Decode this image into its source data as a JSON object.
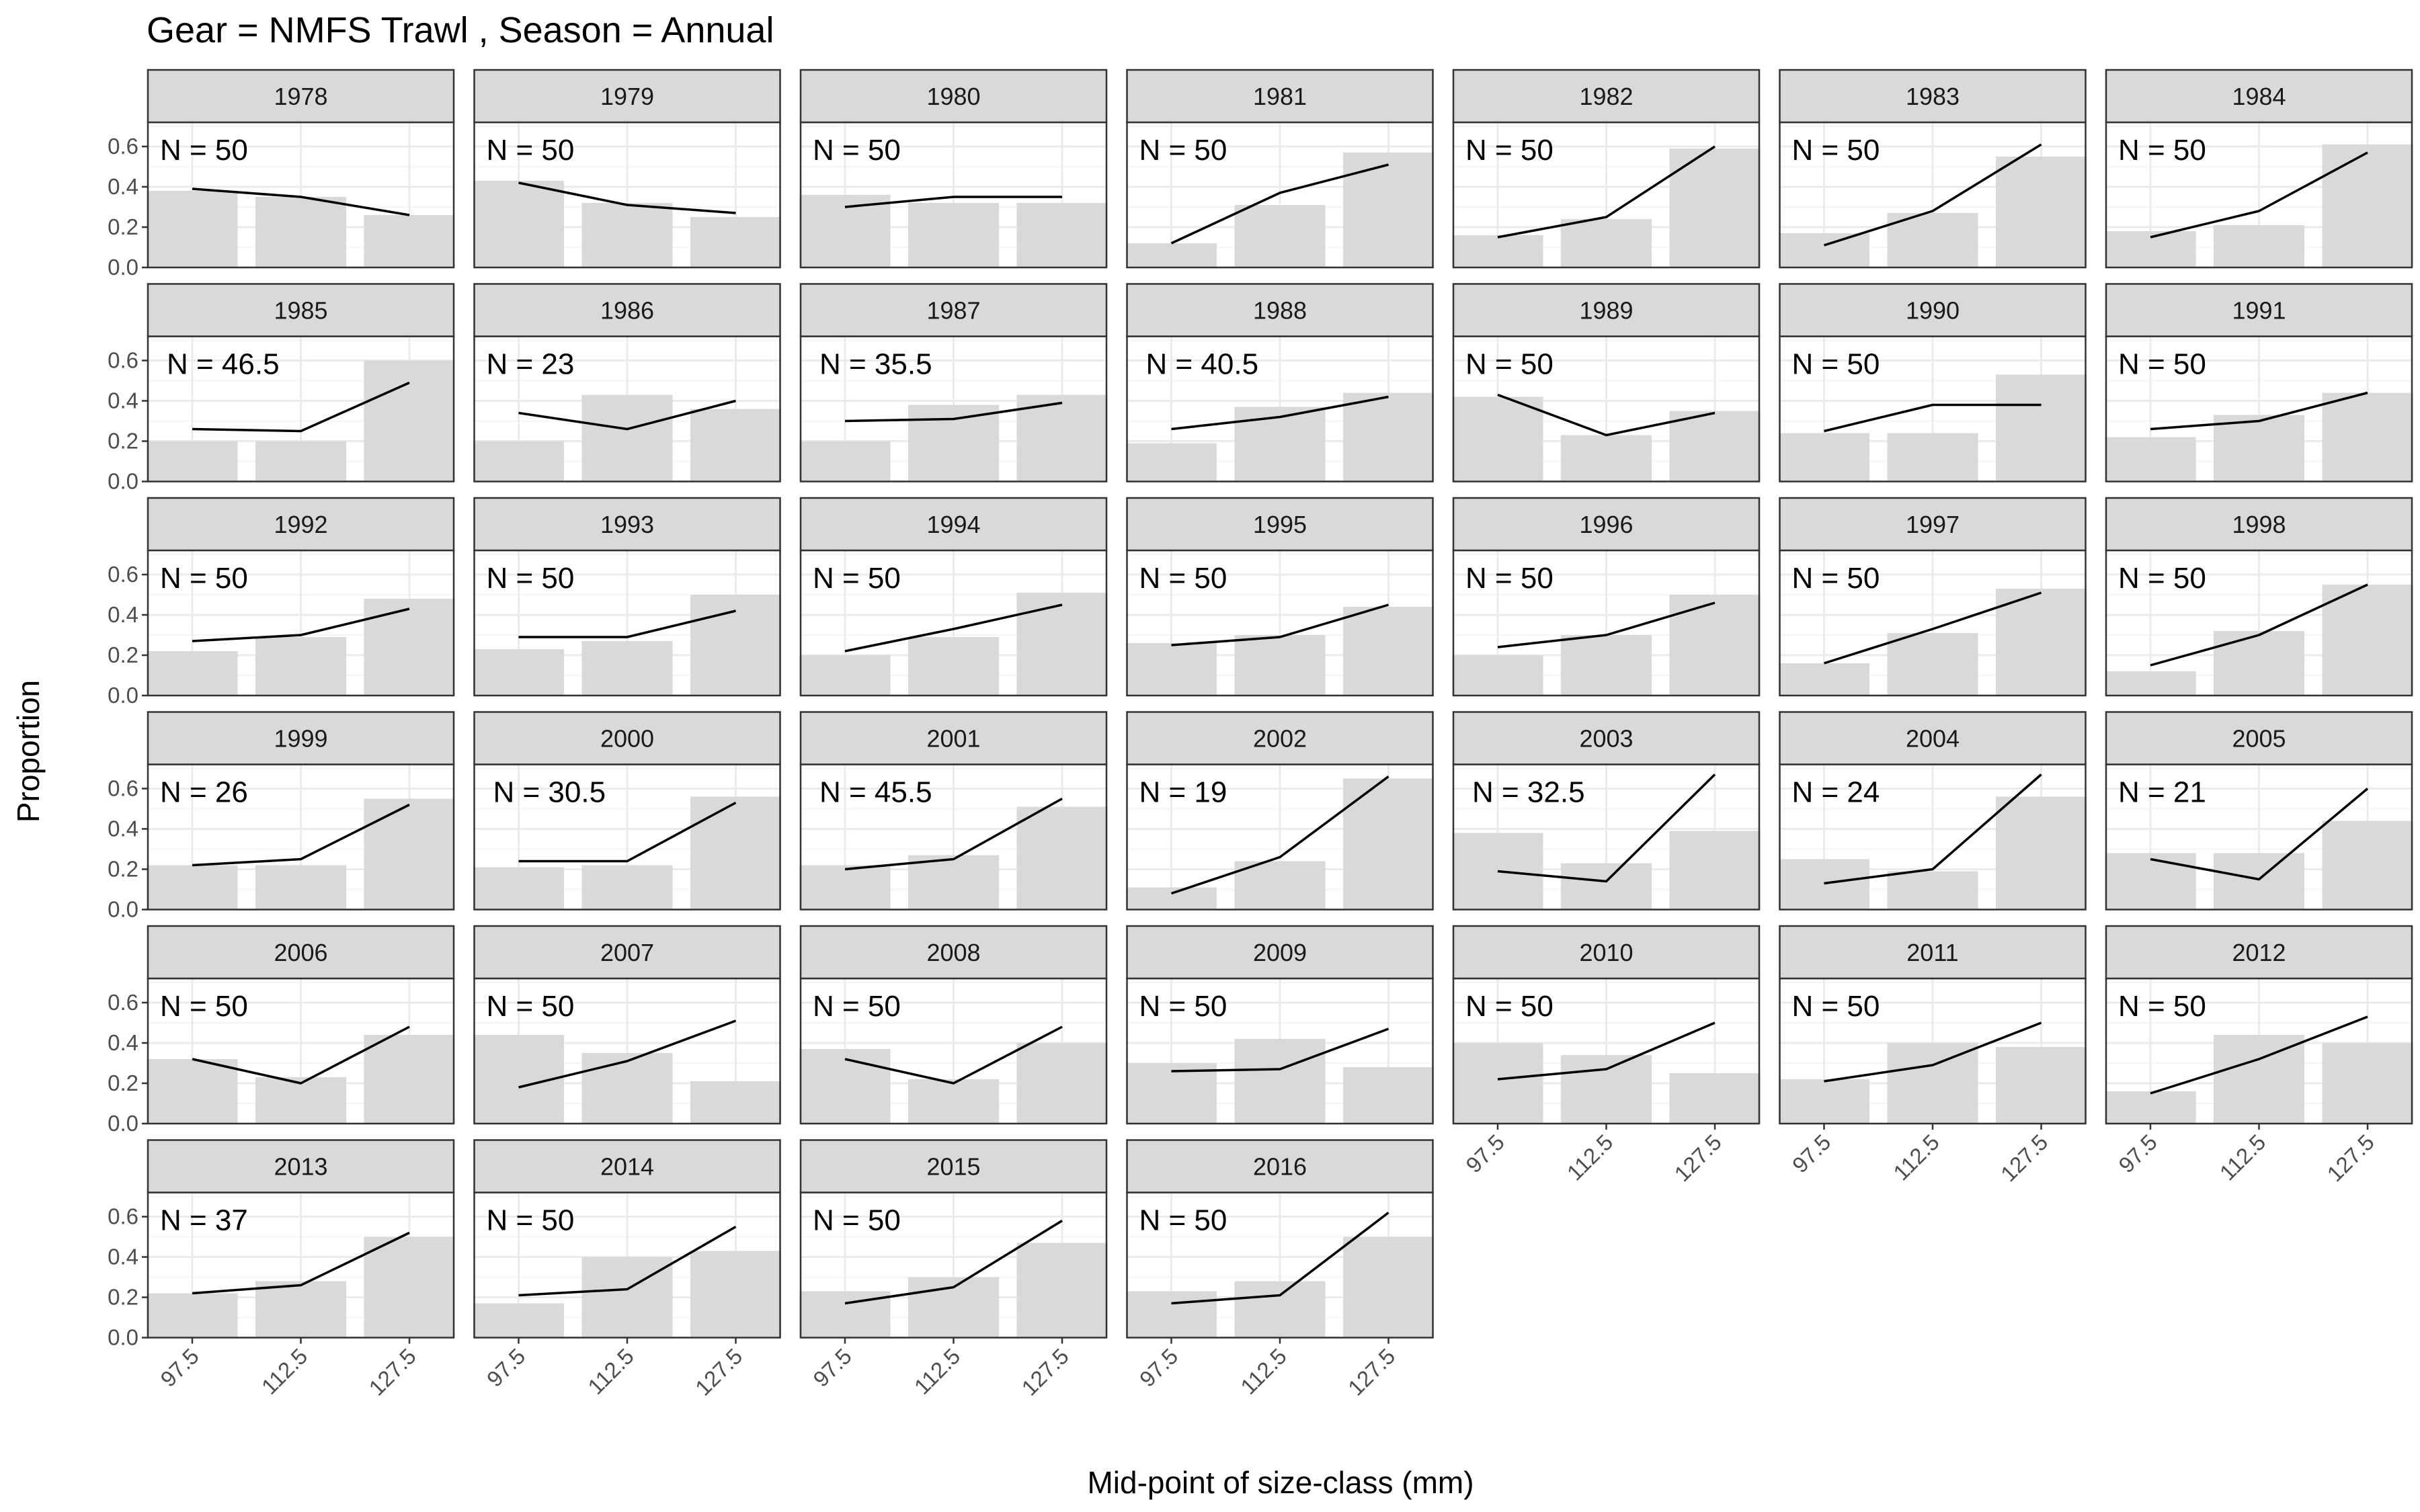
{
  "title": "Gear = NMFS Trawl , Season = Annual",
  "chart_data": {
    "type": "bar",
    "title": "Gear = NMFS Trawl , Season = Annual",
    "xlabel": "Mid-point of size-class (mm)",
    "ylabel": "Proportion",
    "categories": [
      "97.5",
      "112.5",
      "127.5"
    ],
    "ylim": [
      0,
      0.72
    ],
    "yticks": [
      "0.0",
      "0.2",
      "0.4",
      "0.6"
    ],
    "grid": true,
    "facet_by": "year",
    "bar_series_role": "observed",
    "line_series_role": "predicted",
    "panels": [
      {
        "year": "1978",
        "n_label": "N = 50",
        "observed": [
          0.38,
          0.35,
          0.26
        ],
        "predicted": [
          0.39,
          0.35,
          0.26
        ]
      },
      {
        "year": "1979",
        "n_label": "N = 50",
        "observed": [
          0.43,
          0.32,
          0.25
        ],
        "predicted": [
          0.42,
          0.31,
          0.27
        ]
      },
      {
        "year": "1980",
        "n_label": "N = 50",
        "observed": [
          0.36,
          0.32,
          0.32
        ],
        "predicted": [
          0.3,
          0.35,
          0.35
        ]
      },
      {
        "year": "1981",
        "n_label": "N = 50",
        "observed": [
          0.12,
          0.31,
          0.57
        ],
        "predicted": [
          0.12,
          0.37,
          0.51
        ]
      },
      {
        "year": "1982",
        "n_label": "N = 50",
        "observed": [
          0.16,
          0.24,
          0.59
        ],
        "predicted": [
          0.15,
          0.25,
          0.6
        ]
      },
      {
        "year": "1983",
        "n_label": "N = 50",
        "observed": [
          0.17,
          0.27,
          0.55
        ],
        "predicted": [
          0.11,
          0.28,
          0.61
        ]
      },
      {
        "year": "1984",
        "n_label": "N = 50",
        "observed": [
          0.18,
          0.21,
          0.61
        ],
        "predicted": [
          0.15,
          0.28,
          0.57
        ]
      },
      {
        "year": "1985",
        "n_label": "N = 46.5",
        "observed": [
          0.2,
          0.2,
          0.6
        ],
        "predicted": [
          0.26,
          0.25,
          0.49
        ]
      },
      {
        "year": "1986",
        "n_label": "N = 23",
        "observed": [
          0.2,
          0.43,
          0.36
        ],
        "predicted": [
          0.34,
          0.26,
          0.4
        ]
      },
      {
        "year": "1987",
        "n_label": "N = 35.5",
        "observed": [
          0.2,
          0.38,
          0.43
        ],
        "predicted": [
          0.3,
          0.31,
          0.39
        ]
      },
      {
        "year": "1988",
        "n_label": "N = 40.5",
        "observed": [
          0.19,
          0.37,
          0.44
        ],
        "predicted": [
          0.26,
          0.32,
          0.42
        ]
      },
      {
        "year": "1989",
        "n_label": "N = 50",
        "observed": [
          0.42,
          0.23,
          0.35
        ],
        "predicted": [
          0.43,
          0.23,
          0.34
        ]
      },
      {
        "year": "1990",
        "n_label": "N = 50",
        "observed": [
          0.24,
          0.24,
          0.53
        ],
        "predicted": [
          0.25,
          0.38,
          0.38
        ]
      },
      {
        "year": "1991",
        "n_label": "N = 50",
        "observed": [
          0.22,
          0.33,
          0.44
        ],
        "predicted": [
          0.26,
          0.3,
          0.44
        ]
      },
      {
        "year": "1992",
        "n_label": "N = 50",
        "observed": [
          0.22,
          0.29,
          0.48
        ],
        "predicted": [
          0.27,
          0.3,
          0.43
        ]
      },
      {
        "year": "1993",
        "n_label": "N = 50",
        "observed": [
          0.23,
          0.27,
          0.5
        ],
        "predicted": [
          0.29,
          0.29,
          0.42
        ]
      },
      {
        "year": "1994",
        "n_label": "N = 50",
        "observed": [
          0.2,
          0.29,
          0.51
        ],
        "predicted": [
          0.22,
          0.33,
          0.45
        ]
      },
      {
        "year": "1995",
        "n_label": "N = 50",
        "observed": [
          0.26,
          0.3,
          0.44
        ],
        "predicted": [
          0.25,
          0.29,
          0.45
        ]
      },
      {
        "year": "1996",
        "n_label": "N = 50",
        "observed": [
          0.2,
          0.3,
          0.5
        ],
        "predicted": [
          0.24,
          0.3,
          0.46
        ]
      },
      {
        "year": "1997",
        "n_label": "N = 50",
        "observed": [
          0.16,
          0.31,
          0.53
        ],
        "predicted": [
          0.16,
          0.33,
          0.51
        ]
      },
      {
        "year": "1998",
        "n_label": "N = 50",
        "observed": [
          0.12,
          0.32,
          0.55
        ],
        "predicted": [
          0.15,
          0.3,
          0.55
        ]
      },
      {
        "year": "1999",
        "n_label": "N = 26",
        "observed": [
          0.22,
          0.22,
          0.55
        ],
        "predicted": [
          0.22,
          0.25,
          0.52
        ]
      },
      {
        "year": "2000",
        "n_label": "N = 30.5",
        "observed": [
          0.21,
          0.22,
          0.56
        ],
        "predicted": [
          0.24,
          0.24,
          0.53
        ]
      },
      {
        "year": "2001",
        "n_label": "N = 45.5",
        "observed": [
          0.22,
          0.27,
          0.51
        ],
        "predicted": [
          0.2,
          0.25,
          0.55
        ]
      },
      {
        "year": "2002",
        "n_label": "N = 19",
        "observed": [
          0.11,
          0.24,
          0.65
        ],
        "predicted": [
          0.08,
          0.26,
          0.66
        ]
      },
      {
        "year": "2003",
        "n_label": "N = 32.5",
        "observed": [
          0.38,
          0.23,
          0.39
        ],
        "predicted": [
          0.19,
          0.14,
          0.67
        ]
      },
      {
        "year": "2004",
        "n_label": "N = 24",
        "observed": [
          0.25,
          0.19,
          0.56
        ],
        "predicted": [
          0.13,
          0.2,
          0.67
        ]
      },
      {
        "year": "2005",
        "n_label": "N = 21",
        "observed": [
          0.28,
          0.28,
          0.44
        ],
        "predicted": [
          0.25,
          0.15,
          0.6
        ]
      },
      {
        "year": "2006",
        "n_label": "N = 50",
        "observed": [
          0.32,
          0.23,
          0.44
        ],
        "predicted": [
          0.32,
          0.2,
          0.48
        ]
      },
      {
        "year": "2007",
        "n_label": "N = 50",
        "observed": [
          0.44,
          0.35,
          0.21
        ],
        "predicted": [
          0.18,
          0.31,
          0.51
        ]
      },
      {
        "year": "2008",
        "n_label": "N = 50",
        "observed": [
          0.37,
          0.22,
          0.4
        ],
        "predicted": [
          0.32,
          0.2,
          0.48
        ]
      },
      {
        "year": "2009",
        "n_label": "N = 50",
        "observed": [
          0.3,
          0.42,
          0.28
        ],
        "predicted": [
          0.26,
          0.27,
          0.47
        ]
      },
      {
        "year": "2010",
        "n_label": "N = 50",
        "observed": [
          0.4,
          0.34,
          0.25
        ],
        "predicted": [
          0.22,
          0.27,
          0.5
        ]
      },
      {
        "year": "2011",
        "n_label": "N = 50",
        "observed": [
          0.22,
          0.4,
          0.38
        ],
        "predicted": [
          0.21,
          0.29,
          0.5
        ]
      },
      {
        "year": "2012",
        "n_label": "N = 50",
        "observed": [
          0.16,
          0.44,
          0.4
        ],
        "predicted": [
          0.15,
          0.32,
          0.53
        ]
      },
      {
        "year": "2013",
        "n_label": "N = 37",
        "observed": [
          0.22,
          0.28,
          0.5
        ],
        "predicted": [
          0.22,
          0.26,
          0.52
        ]
      },
      {
        "year": "2014",
        "n_label": "N = 50",
        "observed": [
          0.17,
          0.4,
          0.43
        ],
        "predicted": [
          0.21,
          0.24,
          0.55
        ]
      },
      {
        "year": "2015",
        "n_label": "N = 50",
        "observed": [
          0.23,
          0.3,
          0.47
        ],
        "predicted": [
          0.17,
          0.25,
          0.58
        ]
      },
      {
        "year": "2016",
        "n_label": "N = 50",
        "observed": [
          0.23,
          0.28,
          0.5
        ],
        "predicted": [
          0.17,
          0.21,
          0.62
        ]
      }
    ]
  },
  "colors": {
    "bar_fill": "#d9d9d9",
    "line": "#000000",
    "strip_fill": "#d9d9d9",
    "panel_border": "#333333",
    "grid_major": "#ebebeb",
    "grid_minor": "#f5f5f5",
    "tick_text": "#4d4d4d"
  }
}
